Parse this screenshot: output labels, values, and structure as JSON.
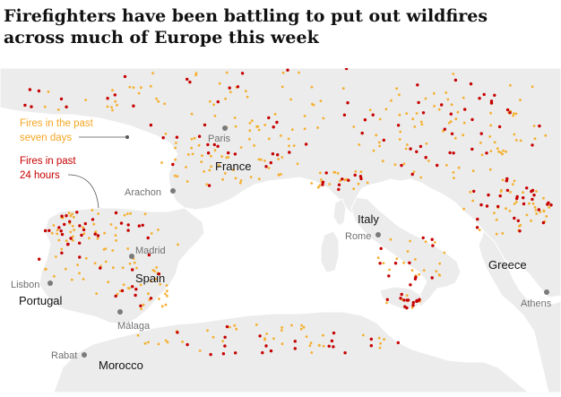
{
  "headline": "Firefighters have been battling to put out wildfires across much of Europe this week",
  "legend": {
    "past_week_line1": "Fires in the past",
    "past_week_line2": "seven days",
    "past_day_line1": "Fires in past",
    "past_day_line2": "24 hours"
  },
  "countries": {
    "france": "France",
    "italy": "Italy",
    "spain": "Spain",
    "portugal": "Portugal",
    "greece": "Greece",
    "morocco": "Morocco"
  },
  "cities": {
    "paris": "Paris",
    "arachon": "Arachon",
    "madrid": "Madrid",
    "lisbon": "Lisbon",
    "rome": "Rome",
    "malaga": "Málaga",
    "rabat": "Rabat",
    "athens": "Athens"
  },
  "colors": {
    "land": "#ececec",
    "sea": "#ffffff",
    "border": "#ffffff",
    "fire_week": "#f5b031",
    "fire_day": "#c70000",
    "city_dot": "#7a7a7a",
    "headline": "#121212"
  }
}
